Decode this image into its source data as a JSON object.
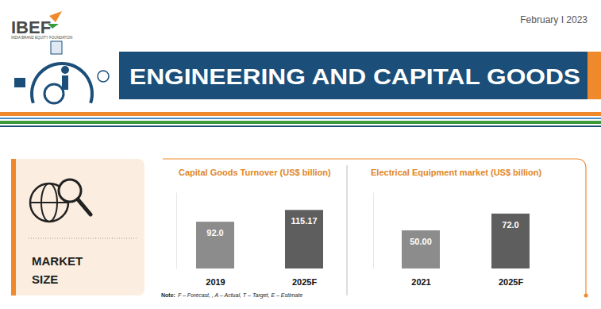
{
  "header": {
    "logo": "IBEF",
    "logo_subtitle": "INDIA BRAND EQUITY FOUNDATION",
    "date": "February I 2023",
    "title": "ENGINEERING AND CAPITAL GOODS"
  },
  "panel": {
    "label": [
      "MARKET",
      "SIZE"
    ]
  },
  "note": {
    "label": "Note:",
    "text": "F – Forecast, , A – Actual, T – Target, E – Estimate"
  },
  "chart_data": [
    {
      "type": "bar",
      "title": "Capital Goods Turnover (US$ billion)",
      "categories": [
        "2019",
        "2025F"
      ],
      "values": [
        92.0,
        115.17
      ],
      "value_labels": [
        "92.0",
        "115.17"
      ],
      "colors": [
        "#8c8c8c",
        "#5e5e5e"
      ],
      "ylim": [
        0,
        150
      ],
      "tick_labels": "x",
      "data_labels": true,
      "grid": false
    },
    {
      "type": "bar",
      "title": "Electrical Equipment market (US$ billion)",
      "categories": [
        "2021",
        "2025F"
      ],
      "values": [
        50.0,
        72.0
      ],
      "value_labels": [
        "50.00",
        "72.0"
      ],
      "colors": [
        "#8c8c8c",
        "#5e5e5e"
      ],
      "ylim": [
        0,
        100
      ],
      "tick_labels": "x",
      "data_labels": true,
      "grid": false
    }
  ]
}
